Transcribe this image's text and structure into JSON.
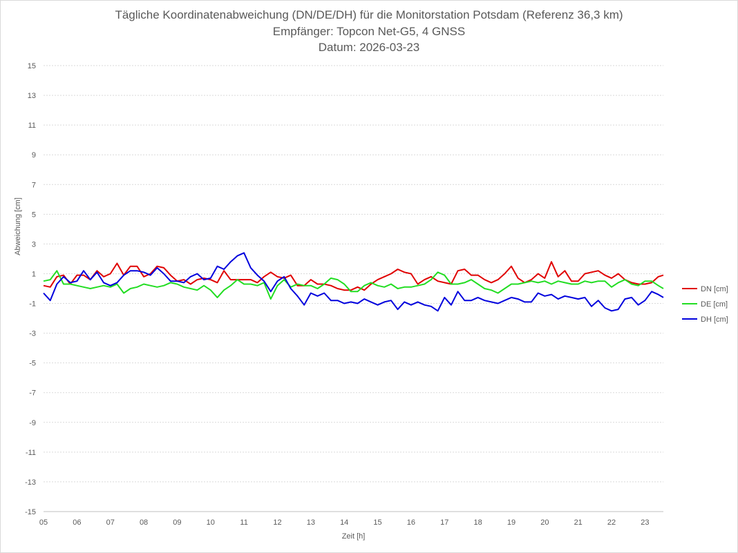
{
  "chart_data": {
    "type": "line",
    "title_lines": [
      "Tägliche Koordinatenabweichung (DN/DE/DH) für die Monitorstation Potsdam (Referenz 36,3 km)",
      "Empfänger: Topcon Net-G5, 4 GNSS",
      "Datum: 2026-03-23"
    ],
    "xlabel": "Zeit [h]",
    "ylabel": "Abweichung [cm]",
    "xlim": [
      5,
      23.55
    ],
    "ylim": [
      -15,
      15
    ],
    "xticks": [
      {
        "value": 5,
        "label": "05"
      },
      {
        "value": 6,
        "label": "06"
      },
      {
        "value": 7,
        "label": "07"
      },
      {
        "value": 8,
        "label": "08"
      },
      {
        "value": 9,
        "label": "09"
      },
      {
        "value": 10,
        "label": "10"
      },
      {
        "value": 11,
        "label": "11"
      },
      {
        "value": 12,
        "label": "12"
      },
      {
        "value": 13,
        "label": "13"
      },
      {
        "value": 14,
        "label": "14"
      },
      {
        "value": 15,
        "label": "15"
      },
      {
        "value": 16,
        "label": "16"
      },
      {
        "value": 17,
        "label": "17"
      },
      {
        "value": 18,
        "label": "18"
      },
      {
        "value": 19,
        "label": "19"
      },
      {
        "value": 20,
        "label": "20"
      },
      {
        "value": 21,
        "label": "21"
      },
      {
        "value": 22,
        "label": "22"
      },
      {
        "value": 23,
        "label": "23"
      }
    ],
    "yticks": [
      {
        "value": 15,
        "label": "15"
      },
      {
        "value": 13,
        "label": "13"
      },
      {
        "value": 11,
        "label": "11"
      },
      {
        "value": 9,
        "label": "9"
      },
      {
        "value": 7,
        "label": "7"
      },
      {
        "value": 5,
        "label": "5"
      },
      {
        "value": 3,
        "label": "3"
      },
      {
        "value": 1,
        "label": "1"
      },
      {
        "value": -1,
        "label": "-1"
      },
      {
        "value": -3,
        "label": "-3"
      },
      {
        "value": -5,
        "label": "-5"
      },
      {
        "value": -7,
        "label": "-7"
      },
      {
        "value": -9,
        "label": "-9"
      },
      {
        "value": -11,
        "label": "-11"
      },
      {
        "value": -13,
        "label": "-13"
      },
      {
        "value": -15,
        "label": "-15"
      }
    ],
    "grid": true,
    "legend_position": "right",
    "series": [
      {
        "name": "DN [cm]",
        "color": "#e00000",
        "points": [
          [
            5.0,
            0.2
          ],
          [
            5.2,
            0.1
          ],
          [
            5.4,
            0.8
          ],
          [
            5.6,
            0.9
          ],
          [
            5.8,
            0.3
          ],
          [
            6.0,
            0.9
          ],
          [
            6.2,
            0.9
          ],
          [
            6.4,
            0.6
          ],
          [
            6.6,
            1.2
          ],
          [
            6.8,
            0.8
          ],
          [
            7.0,
            1.0
          ],
          [
            7.2,
            1.7
          ],
          [
            7.4,
            0.9
          ],
          [
            7.6,
            1.5
          ],
          [
            7.8,
            1.5
          ],
          [
            8.0,
            0.8
          ],
          [
            8.2,
            1.0
          ],
          [
            8.4,
            1.5
          ],
          [
            8.6,
            1.4
          ],
          [
            8.8,
            0.9
          ],
          [
            9.0,
            0.5
          ],
          [
            9.2,
            0.6
          ],
          [
            9.4,
            0.3
          ],
          [
            9.6,
            0.6
          ],
          [
            9.8,
            0.7
          ],
          [
            10.0,
            0.6
          ],
          [
            10.2,
            0.4
          ],
          [
            10.4,
            1.2
          ],
          [
            10.6,
            0.6
          ],
          [
            10.8,
            0.6
          ],
          [
            11.0,
            0.6
          ],
          [
            11.2,
            0.6
          ],
          [
            11.4,
            0.4
          ],
          [
            11.6,
            0.8
          ],
          [
            11.8,
            1.1
          ],
          [
            12.0,
            0.8
          ],
          [
            12.2,
            0.7
          ],
          [
            12.4,
            0.9
          ],
          [
            12.6,
            0.2
          ],
          [
            12.8,
            0.2
          ],
          [
            13.0,
            0.6
          ],
          [
            13.2,
            0.3
          ],
          [
            13.4,
            0.3
          ],
          [
            13.6,
            0.2
          ],
          [
            13.8,
            0.0
          ],
          [
            14.0,
            -0.1
          ],
          [
            14.2,
            -0.1
          ],
          [
            14.4,
            0.1
          ],
          [
            14.6,
            -0.1
          ],
          [
            14.8,
            0.3
          ],
          [
            15.0,
            0.6
          ],
          [
            15.2,
            0.8
          ],
          [
            15.4,
            1.0
          ],
          [
            15.6,
            1.3
          ],
          [
            15.8,
            1.1
          ],
          [
            16.0,
            1.0
          ],
          [
            16.2,
            0.3
          ],
          [
            16.4,
            0.6
          ],
          [
            16.6,
            0.8
          ],
          [
            16.8,
            0.5
          ],
          [
            17.0,
            0.4
          ],
          [
            17.2,
            0.3
          ],
          [
            17.4,
            1.2
          ],
          [
            17.6,
            1.3
          ],
          [
            17.8,
            0.9
          ],
          [
            18.0,
            0.9
          ],
          [
            18.2,
            0.6
          ],
          [
            18.4,
            0.4
          ],
          [
            18.6,
            0.6
          ],
          [
            18.8,
            1.0
          ],
          [
            19.0,
            1.5
          ],
          [
            19.2,
            0.7
          ],
          [
            19.4,
            0.4
          ],
          [
            19.6,
            0.6
          ],
          [
            19.8,
            1.0
          ],
          [
            20.0,
            0.7
          ],
          [
            20.2,
            1.8
          ],
          [
            20.4,
            0.8
          ],
          [
            20.6,
            1.2
          ],
          [
            20.8,
            0.5
          ],
          [
            21.0,
            0.5
          ],
          [
            21.2,
            1.0
          ],
          [
            21.4,
            1.1
          ],
          [
            21.6,
            1.2
          ],
          [
            21.8,
            0.9
          ],
          [
            22.0,
            0.7
          ],
          [
            22.2,
            1.0
          ],
          [
            22.4,
            0.6
          ],
          [
            22.6,
            0.4
          ],
          [
            22.8,
            0.3
          ],
          [
            23.0,
            0.3
          ],
          [
            23.2,
            0.4
          ],
          [
            23.4,
            0.8
          ],
          [
            23.55,
            0.9
          ]
        ]
      },
      {
        "name": "DE [cm]",
        "color": "#22dd22",
        "points": [
          [
            5.0,
            0.5
          ],
          [
            5.2,
            0.6
          ],
          [
            5.4,
            1.2
          ],
          [
            5.6,
            0.3
          ],
          [
            5.8,
            0.3
          ],
          [
            6.0,
            0.2
          ],
          [
            6.2,
            0.1
          ],
          [
            6.4,
            0.0
          ],
          [
            6.6,
            0.1
          ],
          [
            6.8,
            0.2
          ],
          [
            7.0,
            0.1
          ],
          [
            7.2,
            0.3
          ],
          [
            7.4,
            -0.3
          ],
          [
            7.6,
            0.0
          ],
          [
            7.8,
            0.1
          ],
          [
            8.0,
            0.3
          ],
          [
            8.2,
            0.2
          ],
          [
            8.4,
            0.1
          ],
          [
            8.6,
            0.2
          ],
          [
            8.8,
            0.4
          ],
          [
            9.0,
            0.3
          ],
          [
            9.2,
            0.1
          ],
          [
            9.4,
            0.0
          ],
          [
            9.6,
            -0.1
          ],
          [
            9.8,
            0.2
          ],
          [
            10.0,
            -0.1
          ],
          [
            10.2,
            -0.6
          ],
          [
            10.4,
            -0.1
          ],
          [
            10.6,
            0.2
          ],
          [
            10.8,
            0.6
          ],
          [
            11.0,
            0.3
          ],
          [
            11.2,
            0.3
          ],
          [
            11.4,
            0.2
          ],
          [
            11.6,
            0.4
          ],
          [
            11.8,
            -0.7
          ],
          [
            12.0,
            0.2
          ],
          [
            12.2,
            0.6
          ],
          [
            12.4,
            0.1
          ],
          [
            12.6,
            0.3
          ],
          [
            12.8,
            0.2
          ],
          [
            13.0,
            0.2
          ],
          [
            13.2,
            0.0
          ],
          [
            13.4,
            0.3
          ],
          [
            13.6,
            0.7
          ],
          [
            13.8,
            0.6
          ],
          [
            14.0,
            0.3
          ],
          [
            14.2,
            -0.2
          ],
          [
            14.4,
            -0.2
          ],
          [
            14.6,
            0.2
          ],
          [
            14.8,
            0.4
          ],
          [
            15.0,
            0.2
          ],
          [
            15.2,
            0.1
          ],
          [
            15.4,
            0.3
          ],
          [
            15.6,
            0.0
          ],
          [
            15.8,
            0.1
          ],
          [
            16.0,
            0.1
          ],
          [
            16.2,
            0.2
          ],
          [
            16.4,
            0.3
          ],
          [
            16.6,
            0.6
          ],
          [
            16.8,
            1.1
          ],
          [
            17.0,
            0.9
          ],
          [
            17.2,
            0.3
          ],
          [
            17.4,
            0.3
          ],
          [
            17.6,
            0.4
          ],
          [
            17.8,
            0.6
          ],
          [
            18.0,
            0.3
          ],
          [
            18.2,
            0.0
          ],
          [
            18.4,
            -0.1
          ],
          [
            18.6,
            -0.3
          ],
          [
            18.8,
            0.0
          ],
          [
            19.0,
            0.3
          ],
          [
            19.2,
            0.3
          ],
          [
            19.4,
            0.4
          ],
          [
            19.6,
            0.5
          ],
          [
            19.8,
            0.4
          ],
          [
            20.0,
            0.5
          ],
          [
            20.2,
            0.3
          ],
          [
            20.4,
            0.5
          ],
          [
            20.6,
            0.4
          ],
          [
            20.8,
            0.3
          ],
          [
            21.0,
            0.3
          ],
          [
            21.2,
            0.5
          ],
          [
            21.4,
            0.4
          ],
          [
            21.6,
            0.5
          ],
          [
            21.8,
            0.5
          ],
          [
            22.0,
            0.1
          ],
          [
            22.2,
            0.4
          ],
          [
            22.4,
            0.6
          ],
          [
            22.6,
            0.3
          ],
          [
            22.8,
            0.2
          ],
          [
            23.0,
            0.5
          ],
          [
            23.2,
            0.5
          ],
          [
            23.4,
            0.2
          ],
          [
            23.55,
            0.0
          ]
        ]
      },
      {
        "name": "DH [cm]",
        "color": "#0000dd",
        "points": [
          [
            5.0,
            -0.3
          ],
          [
            5.2,
            -0.8
          ],
          [
            5.4,
            0.3
          ],
          [
            5.6,
            0.8
          ],
          [
            5.8,
            0.4
          ],
          [
            6.0,
            0.5
          ],
          [
            6.2,
            1.2
          ],
          [
            6.4,
            0.6
          ],
          [
            6.6,
            1.1
          ],
          [
            6.8,
            0.4
          ],
          [
            7.0,
            0.2
          ],
          [
            7.2,
            0.4
          ],
          [
            7.4,
            0.9
          ],
          [
            7.6,
            1.2
          ],
          [
            7.8,
            1.2
          ],
          [
            8.0,
            1.1
          ],
          [
            8.2,
            0.9
          ],
          [
            8.4,
            1.4
          ],
          [
            8.6,
            1.0
          ],
          [
            8.8,
            0.5
          ],
          [
            9.0,
            0.5
          ],
          [
            9.2,
            0.4
          ],
          [
            9.4,
            0.8
          ],
          [
            9.6,
            1.0
          ],
          [
            9.8,
            0.6
          ],
          [
            10.0,
            0.7
          ],
          [
            10.2,
            1.5
          ],
          [
            10.4,
            1.3
          ],
          [
            10.6,
            1.8
          ],
          [
            10.8,
            2.2
          ],
          [
            11.0,
            2.4
          ],
          [
            11.2,
            1.4
          ],
          [
            11.4,
            0.9
          ],
          [
            11.6,
            0.5
          ],
          [
            11.8,
            -0.2
          ],
          [
            12.0,
            0.5
          ],
          [
            12.2,
            0.8
          ],
          [
            12.4,
            0.0
          ],
          [
            12.6,
            -0.5
          ],
          [
            12.8,
            -1.1
          ],
          [
            13.0,
            -0.3
          ],
          [
            13.2,
            -0.5
          ],
          [
            13.4,
            -0.3
          ],
          [
            13.6,
            -0.8
          ],
          [
            13.8,
            -0.8
          ],
          [
            14.0,
            -1.0
          ],
          [
            14.2,
            -0.9
          ],
          [
            14.4,
            -1.0
          ],
          [
            14.6,
            -0.7
          ],
          [
            14.8,
            -0.9
          ],
          [
            15.0,
            -1.1
          ],
          [
            15.2,
            -0.9
          ],
          [
            15.4,
            -0.8
          ],
          [
            15.6,
            -1.4
          ],
          [
            15.8,
            -0.9
          ],
          [
            16.0,
            -1.1
          ],
          [
            16.2,
            -0.9
          ],
          [
            16.4,
            -1.1
          ],
          [
            16.6,
            -1.2
          ],
          [
            16.8,
            -1.5
          ],
          [
            17.0,
            -0.6
          ],
          [
            17.2,
            -1.1
          ],
          [
            17.4,
            -0.2
          ],
          [
            17.6,
            -0.8
          ],
          [
            17.8,
            -0.8
          ],
          [
            18.0,
            -0.6
          ],
          [
            18.2,
            -0.8
          ],
          [
            18.4,
            -0.9
          ],
          [
            18.6,
            -1.0
          ],
          [
            18.8,
            -0.8
          ],
          [
            19.0,
            -0.6
          ],
          [
            19.2,
            -0.7
          ],
          [
            19.4,
            -0.9
          ],
          [
            19.6,
            -0.9
          ],
          [
            19.8,
            -0.3
          ],
          [
            20.0,
            -0.5
          ],
          [
            20.2,
            -0.4
          ],
          [
            20.4,
            -0.7
          ],
          [
            20.6,
            -0.5
          ],
          [
            20.8,
            -0.6
          ],
          [
            21.0,
            -0.7
          ],
          [
            21.2,
            -0.6
          ],
          [
            21.4,
            -1.2
          ],
          [
            21.6,
            -0.8
          ],
          [
            21.8,
            -1.3
          ],
          [
            22.0,
            -1.5
          ],
          [
            22.2,
            -1.4
          ],
          [
            22.4,
            -0.7
          ],
          [
            22.6,
            -0.6
          ],
          [
            22.8,
            -1.1
          ],
          [
            23.0,
            -0.8
          ],
          [
            23.2,
            -0.2
          ],
          [
            23.4,
            -0.4
          ],
          [
            23.55,
            -0.6
          ]
        ]
      }
    ]
  }
}
